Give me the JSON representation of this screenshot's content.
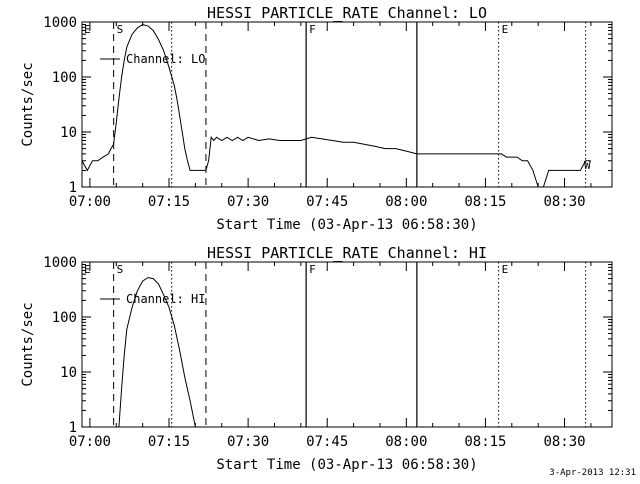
{
  "footer": {
    "timestamp": "3-Apr-2013 12:31"
  },
  "chart_data": [
    {
      "type": "line",
      "title": "HESSI PARTICLE_RATE Channel: LO",
      "xlabel": "Start Time (03-Apr-13 06:58:30)",
      "ylabel": "Counts/sec",
      "y_scale": "log",
      "ylim": [
        1,
        1000
      ],
      "xlim": [
        "06:58:30",
        "08:39:00"
      ],
      "x_tick_labels": [
        "07:00",
        "07:15",
        "07:30",
        "07:45",
        "08:00",
        "08:15",
        "08:30"
      ],
      "y_tick_labels": [
        "1",
        "10",
        "100",
        "1000"
      ],
      "legend": {
        "position": "top-left",
        "entries": [
          "Channel: LO"
        ]
      },
      "markers": [
        {
          "label": "S",
          "time": "07:04:30",
          "style": "dashed"
        },
        {
          "label": "",
          "time": "07:15:30",
          "style": "dotted"
        },
        {
          "label": "",
          "time": "07:22:00",
          "style": "dashed"
        },
        {
          "label": "F",
          "time": "07:41:00",
          "style": "solid"
        },
        {
          "label": "",
          "time": "08:02:00",
          "style": "solid"
        },
        {
          "label": "E",
          "time": "08:17:30",
          "style": "dotted"
        },
        {
          "label": "",
          "time": "08:34:00",
          "style": "dotted"
        }
      ],
      "corner_labels": {
        "left": "E",
        "right": "W"
      },
      "series": [
        {
          "name": "Channel: LO",
          "x": [
            "06:58:30",
            "06:59:30",
            "07:00:30",
            "07:01:30",
            "07:02:30",
            "07:03:30",
            "07:04:00",
            "07:04:30",
            "07:05:00",
            "07:05:30",
            "07:06:00",
            "07:06:30",
            "07:07:00",
            "07:08:00",
            "07:09:00",
            "07:10:00",
            "07:11:00",
            "07:12:00",
            "07:13:00",
            "07:14:00",
            "07:15:00",
            "07:16:00",
            "07:16:30",
            "07:17:00",
            "07:17:30",
            "07:18:00",
            "07:18:30",
            "07:19:00",
            "07:19:30",
            "07:20:00",
            "07:21:00",
            "07:22:00",
            "07:22:30",
            "07:23:00",
            "07:23:30",
            "07:24:00",
            "07:25:00",
            "07:26:00",
            "07:27:00",
            "07:28:00",
            "07:29:00",
            "07:30:00",
            "07:32:00",
            "07:34:00",
            "07:36:00",
            "07:38:00",
            "07:40:00",
            "07:42:00",
            "07:44:00",
            "07:46:00",
            "07:48:00",
            "07:50:00",
            "07:52:00",
            "07:54:00",
            "07:56:00",
            "07:58:00",
            "08:00:00",
            "08:02:00",
            "08:04:00",
            "08:06:00",
            "08:08:00",
            "08:10:00",
            "08:12:00",
            "08:14:00",
            "08:16:00",
            "08:18:00",
            "08:19:00",
            "08:20:00",
            "08:21:00",
            "08:22:00",
            "08:23:00",
            "08:24:00",
            "08:25:00",
            "08:26:00",
            "08:27:00",
            "08:28:00",
            "08:29:00",
            "08:30:00",
            "08:31:00",
            "08:32:00",
            "08:33:00",
            "08:34:00",
            "08:35:00"
          ],
          "y": [
            3,
            2,
            3,
            3,
            3.5,
            4,
            5,
            6,
            15,
            40,
            100,
            200,
            350,
            600,
            780,
            900,
            850,
            700,
            480,
            300,
            150,
            70,
            40,
            20,
            10,
            5,
            3,
            2,
            2,
            2,
            2,
            2,
            3,
            8,
            7,
            8,
            7,
            8,
            7,
            8,
            7,
            8,
            7,
            7.5,
            7,
            7,
            7,
            8,
            7.5,
            7,
            6.5,
            6.5,
            6,
            5.5,
            5,
            5,
            4.5,
            4,
            4,
            4,
            4,
            4,
            4,
            4,
            4,
            4,
            3.5,
            3.5,
            3.5,
            3,
            3,
            2,
            1,
            1,
            2,
            2,
            2,
            2,
            2,
            2,
            2,
            3,
            3
          ]
        }
      ]
    },
    {
      "type": "line",
      "title": "HESSI PARTICLE_RATE Channel: HI",
      "xlabel": "Start Time (03-Apr-13 06:58:30)",
      "ylabel": "Counts/sec",
      "y_scale": "log",
      "ylim": [
        1,
        1000
      ],
      "xlim": [
        "06:58:30",
        "08:39:00"
      ],
      "x_tick_labels": [
        "07:00",
        "07:15",
        "07:30",
        "07:45",
        "08:00",
        "08:15",
        "08:30"
      ],
      "y_tick_labels": [
        "1",
        "10",
        "100",
        "1000"
      ],
      "legend": {
        "position": "top-left",
        "entries": [
          "Channel: HI"
        ]
      },
      "markers": [
        {
          "label": "S",
          "time": "07:04:30",
          "style": "dashed"
        },
        {
          "label": "",
          "time": "07:15:30",
          "style": "dotted"
        },
        {
          "label": "",
          "time": "07:22:00",
          "style": "dashed"
        },
        {
          "label": "F",
          "time": "07:41:00",
          "style": "solid"
        },
        {
          "label": "",
          "time": "08:02:00",
          "style": "solid"
        },
        {
          "label": "E",
          "time": "08:17:30",
          "style": "dotted"
        },
        {
          "label": "",
          "time": "08:34:00",
          "style": "dotted"
        }
      ],
      "corner_labels": {
        "left": "E",
        "right": ""
      },
      "series": [
        {
          "name": "Channel: HI",
          "x": [
            "07:05:30",
            "07:06:00",
            "07:06:30",
            "07:07:00",
            "07:08:00",
            "07:09:00",
            "07:10:00",
            "07:11:00",
            "07:12:00",
            "07:13:00",
            "07:14:00",
            "07:15:00",
            "07:16:00",
            "07:17:00",
            "07:18:00",
            "07:19:00",
            "07:20:00"
          ],
          "y": [
            1,
            5,
            20,
            60,
            150,
            300,
            450,
            520,
            500,
            400,
            250,
            150,
            70,
            25,
            8,
            3,
            1
          ]
        }
      ]
    }
  ]
}
